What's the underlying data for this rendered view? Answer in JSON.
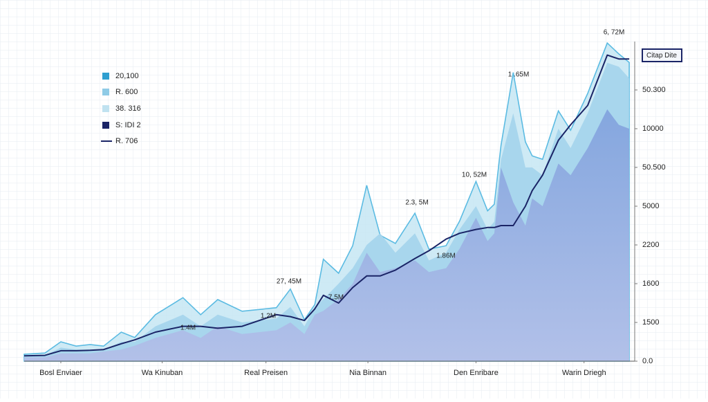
{
  "chart_data": {
    "type": "area",
    "y_axis_label": "Citap Dite",
    "x": [
      0,
      3.4,
      6,
      8.5,
      10.8,
      13,
      15.9,
      18.1,
      21.5,
      26,
      28.9,
      31.7,
      35.7,
      41.3,
      43.6,
      45.9,
      47.6,
      49,
      51.5,
      53.8,
      56.1,
      58.3,
      60.8,
      64,
      66.3,
      69.1,
      71.3,
      74,
      75.9,
      77,
      78.1,
      80.1,
      82.1,
      83.2,
      84.9,
      87.5,
      89.5,
      92.3,
      95.5,
      97.4,
      99.1
    ],
    "xlim": [
      0,
      100
    ],
    "xticks": [
      {
        "value": 6,
        "label": "Bosl Enviaer"
      },
      {
        "value": 22.6,
        "label": "Wa Kinuban"
      },
      {
        "value": 39.6,
        "label": "Real Preisen"
      },
      {
        "value": 56.3,
        "label": "Nia Binnan"
      },
      {
        "value": 74,
        "label": "Den Enribare"
      },
      {
        "value": 91.7,
        "label": "Warin Driegh"
      }
    ],
    "ylim": [
      0,
      8.4
    ],
    "yticks": [
      {
        "value": 0,
        "label": "0.0"
      },
      {
        "value": 1,
        "label": "1500"
      },
      {
        "value": 2,
        "label": "1600"
      },
      {
        "value": 3,
        "label": "2200"
      },
      {
        "value": 4,
        "label": "5000"
      },
      {
        "value": 5,
        "label": "50.500"
      },
      {
        "value": 6,
        "label": "10000"
      },
      {
        "value": 7,
        "label": "50.300"
      }
    ],
    "legend_position": "upper left",
    "legend": [
      {
        "label": "20,100",
        "color": "#2f9fd0",
        "kind": "box"
      },
      {
        "label": "R. 600",
        "color": "#8fcbe6",
        "kind": "box"
      },
      {
        "label": "38. 316",
        "color": "#c0e2f0",
        "kind": "box"
      },
      {
        "label": "S: IDI 2",
        "color": "#1a2466",
        "kind": "box"
      },
      {
        "label": "R. 706",
        "color": "#1a2466",
        "kind": "line"
      }
    ],
    "series": [
      {
        "style": "outline-area",
        "color": "#5bbbe2",
        "fill": "#c9e8f4",
        "values": [
          0.18,
          0.21,
          0.5,
          0.39,
          0.43,
          0.39,
          0.75,
          0.61,
          1.2,
          1.64,
          1.2,
          1.59,
          1.29,
          1.38,
          1.86,
          1.07,
          1.46,
          2.63,
          2.27,
          2.98,
          4.54,
          3.25,
          3.04,
          3.82,
          2.89,
          2.98,
          3.61,
          4.64,
          3.88,
          4.05,
          5.57,
          7.45,
          5.66,
          5.3,
          5.21,
          6.46,
          5.96,
          6.91,
          8.21,
          7.93,
          7.71
        ]
      },
      {
        "style": "area",
        "color": "#a4d4ec",
        "values": [
          0.15,
          0.15,
          0.35,
          0.3,
          0.3,
          0.3,
          0.5,
          0.5,
          0.9,
          1.2,
          0.9,
          1.2,
          1.0,
          1.1,
          1.4,
          0.9,
          1.4,
          1.6,
          2.0,
          2.4,
          3.0,
          3.3,
          2.8,
          3.3,
          2.6,
          2.8,
          3.4,
          4.0,
          3.4,
          3.6,
          5.2,
          6.4,
          5.0,
          5.0,
          4.8,
          6.0,
          5.5,
          6.4,
          7.7,
          7.6,
          7.3
        ]
      },
      {
        "style": "area",
        "color": "#8ea8de",
        "values": [
          0.1,
          0.1,
          0.2,
          0.2,
          0.2,
          0.25,
          0.3,
          0.4,
          0.6,
          0.8,
          0.6,
          0.9,
          0.7,
          0.8,
          1.0,
          0.7,
          1.2,
          1.3,
          1.6,
          2.0,
          2.8,
          2.3,
          2.4,
          2.6,
          2.3,
          2.4,
          2.9,
          3.7,
          3.1,
          3.3,
          5.0,
          4.1,
          3.5,
          4.2,
          4.0,
          5.1,
          4.8,
          5.5,
          6.5,
          6.1,
          6.0
        ]
      },
      {
        "style": "line",
        "color": "#1a2466",
        "values": [
          0.14,
          0.15,
          0.27,
          0.27,
          0.28,
          0.3,
          0.45,
          0.55,
          0.75,
          0.9,
          0.9,
          0.85,
          0.9,
          1.2,
          1.15,
          1.05,
          1.35,
          1.7,
          1.5,
          1.9,
          2.2,
          2.2,
          2.35,
          2.65,
          2.85,
          3.15,
          3.3,
          3.4,
          3.45,
          3.45,
          3.5,
          3.5,
          4.0,
          4.4,
          4.8,
          5.7,
          6.1,
          6.6,
          7.9,
          7.8,
          7.8
        ]
      }
    ],
    "annotations": [
      "6, 72M",
      "1 .65M",
      "10, 52M",
      "2.3, 5M",
      "1.86M",
      "27, 45M",
      "7.5M",
      "1.2M",
      "1.4M"
    ]
  }
}
